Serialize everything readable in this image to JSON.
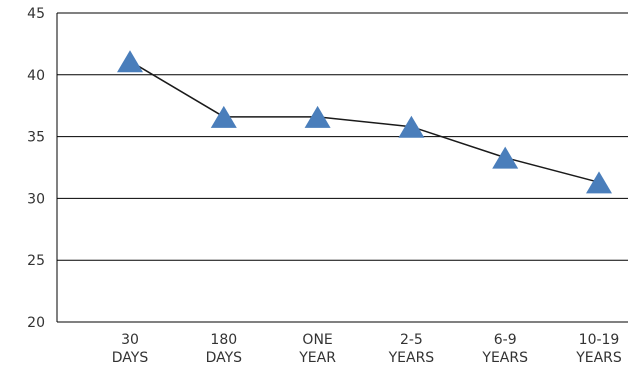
{
  "chart_data": {
    "type": "line",
    "categories": [
      [
        "30",
        "DAYS"
      ],
      [
        "180",
        "DAYS"
      ],
      [
        "ONE",
        "YEAR"
      ],
      [
        "2-5",
        "YEARS"
      ],
      [
        "6-9",
        "YEARS"
      ],
      [
        "10-19",
        "YEARS"
      ]
    ],
    "series": [
      {
        "values": [
          41.1,
          36.6,
          36.6,
          35.8,
          33.3,
          31.3
        ]
      }
    ],
    "ylim": [
      20,
      45
    ],
    "yticks": [
      "20",
      "25",
      "30",
      "35",
      "40",
      "45"
    ],
    "grid": true,
    "marker": "triangle",
    "marker_color": "#4a7ebb",
    "line_color": "#1a1a1a",
    "grid_color": "#000000"
  }
}
